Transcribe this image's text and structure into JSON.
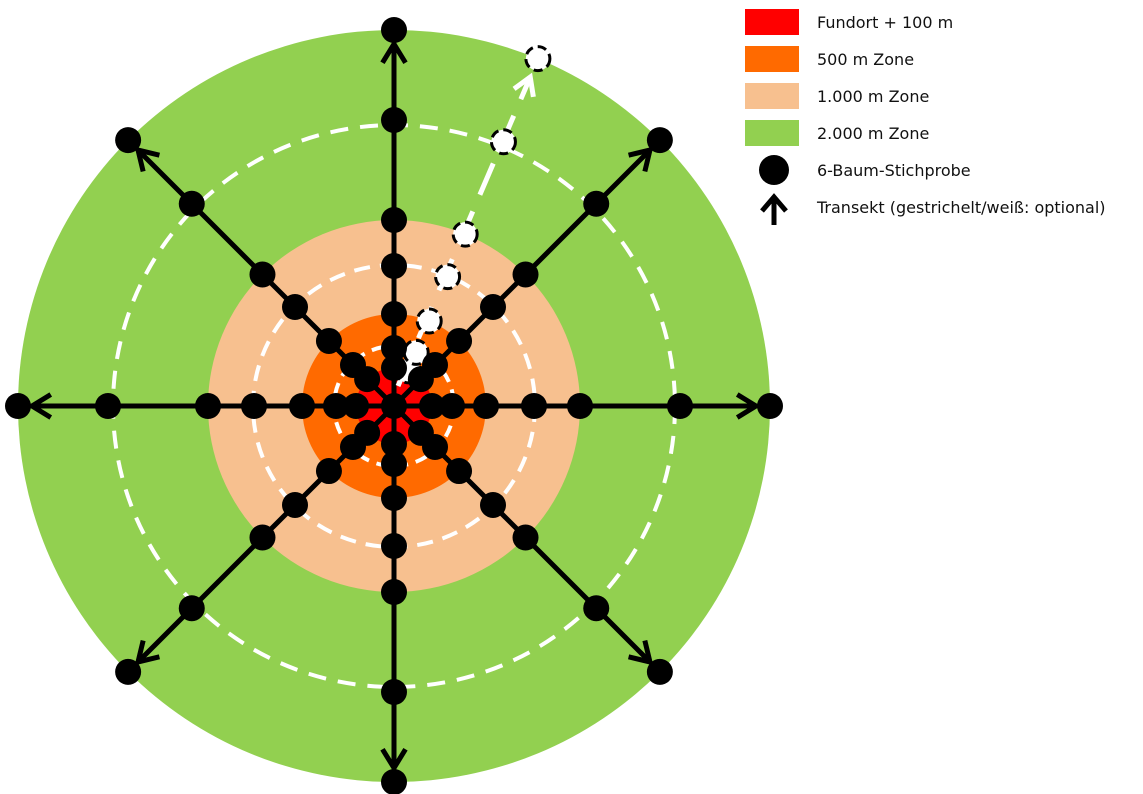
{
  "colors": {
    "fundort": "#FF0000",
    "zone_500": "#FF6A00",
    "zone_1000": "#F7C08F",
    "zone_2000": "#92D050",
    "sample": "#000000",
    "transect": "#000000",
    "optional": "#FFFFFF"
  },
  "legend": {
    "fundort": "Fundort + 100 m",
    "zone_500": "500 m Zone",
    "zone_1000": "1.000 m Zone",
    "zone_2000": "2.000 m Zone",
    "sample": "6-Baum-Stichprobe",
    "transect": "Transekt (gestrichelt/weiß:  optional)"
  },
  "diagram": {
    "zones_m": [
      100,
      500,
      1000,
      2000
    ],
    "dashed_rings_m": [
      400,
      800,
      1600
    ],
    "transect_directions_deg": [
      0,
      45,
      90,
      135,
      180,
      225,
      270,
      315
    ],
    "sample_distances_m": [
      100,
      200,
      400,
      600,
      800,
      1500,
      2000
    ],
    "optional_transect_direction_deg": 22.5
  }
}
